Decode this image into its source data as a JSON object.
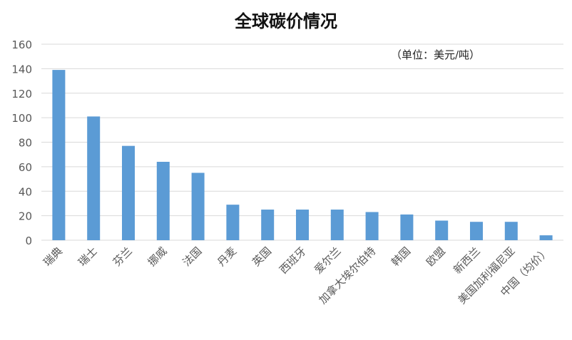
{
  "chart_data": {
    "type": "bar",
    "title": "全球碳价情况",
    "unit_note": "（单位：美元/吨）",
    "categories": [
      "瑞典",
      "瑞士",
      "芬兰",
      "挪威",
      "法国",
      "丹麦",
      "英国",
      "西班牙",
      "爱尔兰",
      "加拿大埃尔伯特",
      "韩国",
      "欧盟",
      "新西兰",
      "美国加利福尼亚",
      "中国（均价）"
    ],
    "values": [
      139,
      101,
      77,
      64,
      55,
      29,
      25,
      25,
      25,
      23,
      21,
      16,
      15,
      15,
      4
    ],
    "ylim": [
      0,
      160
    ],
    "yticks": [
      0,
      20,
      40,
      60,
      80,
      100,
      120,
      140,
      160
    ],
    "grid": true,
    "bar_color": "#5b9bd5",
    "grid_color": "#d9d9d9",
    "tick_color": "#595959"
  }
}
